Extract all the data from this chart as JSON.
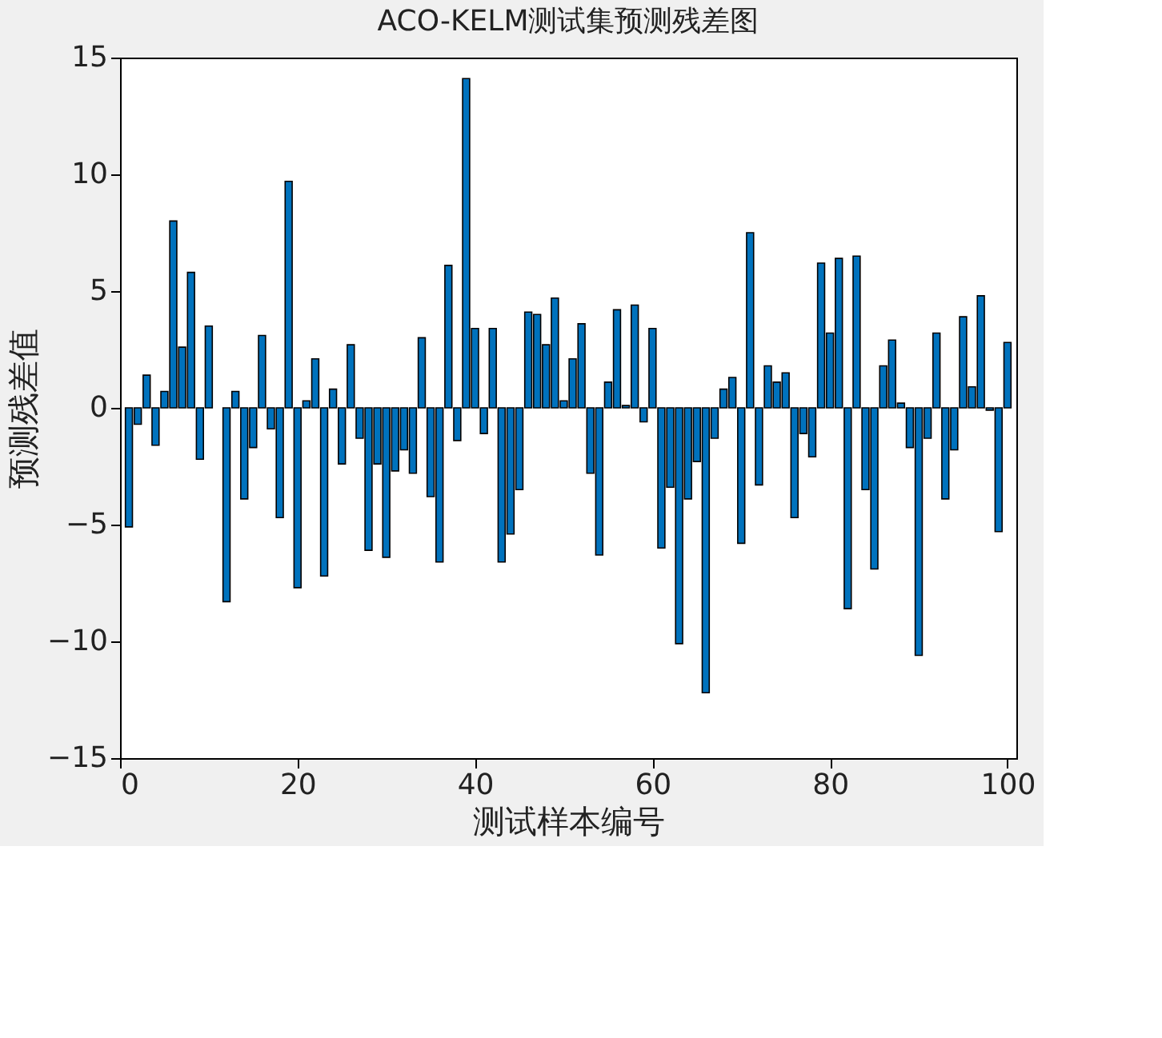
{
  "chart_data": {
    "type": "bar",
    "title": "ACO-KELM测试集预测残差图",
    "xlabel": "测试样本编号",
    "ylabel": "预测残差值",
    "color": "#0072bd",
    "x": [
      1,
      2,
      3,
      4,
      5,
      6,
      7,
      8,
      9,
      10,
      11,
      12,
      13,
      14,
      15,
      16,
      17,
      18,
      19,
      20,
      21,
      22,
      23,
      24,
      25,
      26,
      27,
      28,
      29,
      30,
      31,
      32,
      33,
      34,
      35,
      36,
      37,
      38,
      39,
      40,
      41,
      42,
      43,
      44,
      45,
      46,
      47,
      48,
      49,
      50,
      51,
      52,
      53,
      54,
      55,
      56,
      57,
      58,
      59,
      60,
      61,
      62,
      63,
      64,
      65,
      66,
      67,
      68,
      69,
      70,
      71,
      72,
      73,
      74,
      75,
      76,
      77,
      78,
      79,
      80,
      81,
      82,
      83,
      84,
      85,
      86,
      87,
      88,
      89,
      90,
      91,
      92,
      93,
      94,
      95,
      96,
      97,
      98,
      99,
      100
    ],
    "values": [
      -5.1,
      -0.7,
      1.4,
      -1.6,
      0.7,
      8.0,
      2.6,
      5.8,
      -2.2,
      3.5,
      null,
      -8.3,
      0.7,
      -3.9,
      -1.7,
      3.1,
      -0.9,
      -4.7,
      9.7,
      -7.7,
      0.3,
      2.1,
      -7.2,
      0.8,
      -2.4,
      2.7,
      -1.3,
      -6.1,
      -2.4,
      -6.4,
      -2.7,
      -1.8,
      -2.8,
      3.0,
      -3.8,
      -6.6,
      6.1,
      -1.4,
      14.1,
      3.4,
      -1.1,
      3.4,
      -6.6,
      -5.4,
      -3.5,
      4.1,
      4.0,
      2.7,
      4.7,
      0.3,
      2.1,
      3.6,
      -2.8,
      -6.3,
      1.1,
      4.2,
      0.1,
      4.4,
      -0.6,
      3.4,
      -6.0,
      -3.4,
      -10.1,
      -3.9,
      -2.3,
      -12.2,
      -1.3,
      0.8,
      1.3,
      -5.8,
      7.5,
      -3.3,
      1.8,
      1.1,
      1.5,
      -4.7,
      -1.1,
      -2.1,
      6.2,
      3.2,
      6.4,
      -8.6,
      6.5,
      -3.5,
      -6.9,
      1.8,
      2.9,
      0.2,
      -1.7,
      -10.6,
      -1.3,
      3.2,
      -3.9,
      -1.8,
      3.9,
      0.9,
      4.8,
      -0.1,
      -5.3,
      2.8
    ],
    "xlim": [
      0,
      101
    ],
    "ylim": [
      -15,
      15
    ],
    "xticks": [
      0,
      20,
      40,
      60,
      80,
      100
    ],
    "yticks": [
      -15,
      -10,
      -5,
      0,
      5,
      10,
      15
    ],
    "grid": false
  }
}
